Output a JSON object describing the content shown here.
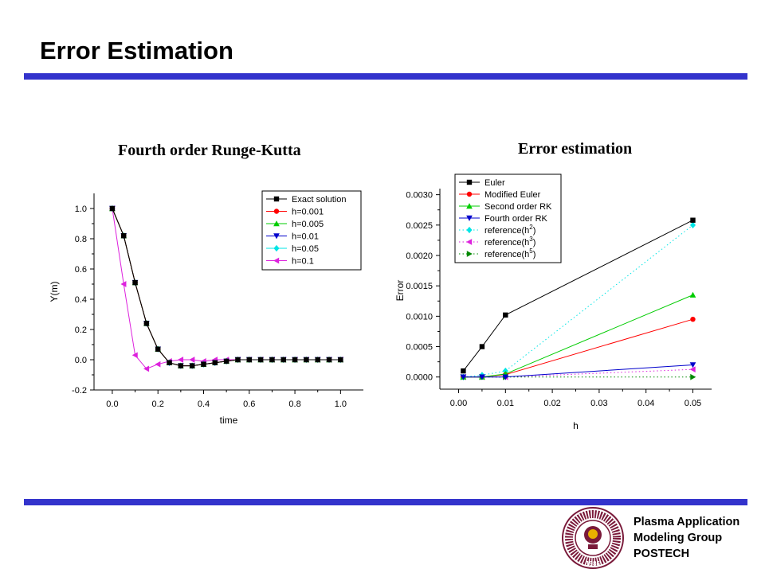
{
  "slide": {
    "title": "Error Estimation",
    "footer": {
      "line1": "Plasma Application",
      "line2": "Modeling Group",
      "line3": "POSTECH"
    },
    "logo": {
      "icon": "postech-seal-icon",
      "text_top": "POHANG UNIVERSITY OF SCIENCE AND TECHNOLOGY",
      "year": "1986"
    },
    "colors": {
      "accent_bar": "#3333cc"
    }
  },
  "chart_data": [
    {
      "type": "line",
      "title": "Fourth order Runge-Kutta",
      "xlabel": "time",
      "ylabel": "Y(m)",
      "xlim": [
        -0.08,
        1.1
      ],
      "ylim": [
        -0.2,
        1.1
      ],
      "xticks": [
        "0.0",
        "0.2",
        "0.4",
        "0.6",
        "0.8",
        "1.0"
      ],
      "yticks": [
        "-0.2",
        "0.0",
        "0.2",
        "0.4",
        "0.6",
        "0.8",
        "1.0"
      ],
      "legend_position": "top-right",
      "series": [
        {
          "name": "Exact solution",
          "color": "#000000",
          "marker": "square",
          "x": [
            0,
            0.05,
            0.1,
            0.15,
            0.2,
            0.25,
            0.3,
            0.35,
            0.4,
            0.45,
            0.5,
            0.55,
            0.6,
            0.65,
            0.7,
            0.75,
            0.8,
            0.85,
            0.9,
            0.95,
            1.0
          ],
          "y": [
            1.0,
            0.82,
            0.51,
            0.24,
            0.07,
            -0.02,
            -0.04,
            -0.04,
            -0.03,
            -0.02,
            -0.01,
            0,
            0,
            0,
            0,
            0,
            0,
            0,
            0,
            0,
            0
          ]
        },
        {
          "name": "h=0.001",
          "color": "#ff0000",
          "marker": "circle",
          "x": [
            0,
            0.05,
            0.1,
            0.15,
            0.2,
            0.25,
            0.3,
            0.35,
            0.4,
            0.45,
            0.5,
            0.55,
            0.6,
            0.65,
            0.7,
            0.75,
            0.8,
            0.85,
            0.9,
            0.95,
            1.0
          ],
          "y": [
            1.0,
            0.82,
            0.51,
            0.24,
            0.07,
            -0.02,
            -0.04,
            -0.04,
            -0.03,
            -0.02,
            -0.01,
            0,
            0,
            0,
            0,
            0,
            0,
            0,
            0,
            0,
            0
          ]
        },
        {
          "name": "h=0.005",
          "color": "#00cc00",
          "marker": "triangle-up",
          "x": [
            0,
            0.05,
            0.1,
            0.15,
            0.2,
            0.25,
            0.3,
            0.35,
            0.4,
            0.45,
            0.5,
            0.55,
            0.6,
            0.65,
            0.7,
            0.75,
            0.8,
            0.85,
            0.9,
            0.95,
            1.0
          ],
          "y": [
            1.0,
            0.82,
            0.51,
            0.24,
            0.07,
            -0.02,
            -0.04,
            -0.04,
            -0.03,
            -0.02,
            -0.01,
            0,
            0,
            0,
            0,
            0,
            0,
            0,
            0,
            0,
            0
          ]
        },
        {
          "name": "h=0.01",
          "color": "#0000cc",
          "marker": "triangle-down",
          "x": [
            0,
            0.05,
            0.1,
            0.15,
            0.2,
            0.25,
            0.3,
            0.35,
            0.4,
            0.45,
            0.5,
            0.55,
            0.6,
            0.65,
            0.7,
            0.75,
            0.8,
            0.85,
            0.9,
            0.95,
            1.0
          ],
          "y": [
            1.0,
            0.82,
            0.51,
            0.24,
            0.07,
            -0.02,
            -0.04,
            -0.04,
            -0.03,
            -0.02,
            -0.01,
            0,
            0,
            0,
            0,
            0,
            0,
            0,
            0,
            0,
            0
          ]
        },
        {
          "name": "h=0.05",
          "color": "#00e5e5",
          "marker": "diamond",
          "x": [
            0,
            0.05,
            0.1,
            0.15,
            0.2,
            0.25,
            0.3,
            0.35,
            0.4,
            0.45,
            0.5,
            0.55,
            0.6,
            0.65,
            0.7,
            0.75,
            0.8,
            0.85,
            0.9,
            0.95,
            1.0
          ],
          "y": [
            1.0,
            0.82,
            0.51,
            0.24,
            0.07,
            -0.02,
            -0.04,
            -0.04,
            -0.03,
            -0.02,
            -0.01,
            0,
            0,
            0,
            0,
            0,
            0,
            0,
            0,
            0,
            0
          ]
        },
        {
          "name": "h=0.1",
          "color": "#dd22dd",
          "marker": "triangle-left",
          "x": [
            0,
            0.05,
            0.1,
            0.15,
            0.2,
            0.25,
            0.3,
            0.35,
            0.4,
            0.45,
            0.5,
            0.55,
            0.6,
            0.65,
            0.7,
            0.75,
            0.8,
            0.85,
            0.9,
            0.95,
            1.0
          ],
          "y": [
            1.0,
            0.5,
            0.03,
            -0.06,
            -0.03,
            -0.01,
            0.0,
            0.0,
            -0.01,
            0,
            0,
            0,
            0,
            0,
            0,
            0,
            0,
            0,
            0,
            0,
            0
          ]
        }
      ]
    },
    {
      "type": "line",
      "title": "Error estimation",
      "xlabel": "h",
      "ylabel": "Error",
      "xlim": [
        -0.004,
        0.054
      ],
      "ylim": [
        -0.0002,
        0.0031
      ],
      "xticks": [
        "0.00",
        "0.01",
        "0.02",
        "0.03",
        "0.04",
        "0.05"
      ],
      "yticks": [
        "0.0000",
        "0.0005",
        "0.0010",
        "0.0015",
        "0.0020",
        "0.0025",
        "0.0030"
      ],
      "legend_position": "top-left",
      "series": [
        {
          "name": "Euler",
          "color": "#000000",
          "marker": "square",
          "style": "solid",
          "x": [
            0.001,
            0.005,
            0.01,
            0.05
          ],
          "y": [
            0.0001,
            0.0005,
            0.00102,
            0.00258
          ]
        },
        {
          "name": "Modified Euler",
          "color": "#ff0000",
          "marker": "circle",
          "style": "solid",
          "x": [
            0.001,
            0.005,
            0.01,
            0.05
          ],
          "y": [
            0.0,
            0.0,
            4e-05,
            0.00095
          ]
        },
        {
          "name": "Second order RK",
          "color": "#00cc00",
          "marker": "triangle-up",
          "style": "solid",
          "x": [
            0.001,
            0.005,
            0.01,
            0.05
          ],
          "y": [
            0.0,
            0.0,
            5e-05,
            0.00135
          ]
        },
        {
          "name": "Fourth order RK",
          "color": "#0000cc",
          "marker": "triangle-down",
          "style": "solid",
          "x": [
            0.001,
            0.005,
            0.01,
            0.05
          ],
          "y": [
            0.0,
            0.0,
            0.0,
            0.0002
          ]
        },
        {
          "name": "reference(h",
          "superscript": "2",
          "suffix": ")",
          "color": "#00e5e5",
          "marker": "diamond",
          "style": "dotted",
          "x": [
            0.001,
            0.005,
            0.01,
            0.05
          ],
          "y": [
            0.0,
            3e-05,
            0.0001,
            0.0025
          ]
        },
        {
          "name": "reference(h",
          "superscript": "3",
          "suffix": ")",
          "color": "#dd22dd",
          "marker": "triangle-left",
          "style": "dotted",
          "x": [
            0.001,
            0.005,
            0.01,
            0.05
          ],
          "y": [
            0.0,
            0.0,
            0.0,
            0.000125
          ]
        },
        {
          "name": "reference(h",
          "superscript": "5",
          "suffix": ")",
          "color": "#008800",
          "marker": "triangle-right",
          "style": "dotted",
          "x": [
            0.001,
            0.005,
            0.01,
            0.05
          ],
          "y": [
            0.0,
            0.0,
            0.0,
            0.0
          ]
        }
      ]
    }
  ]
}
